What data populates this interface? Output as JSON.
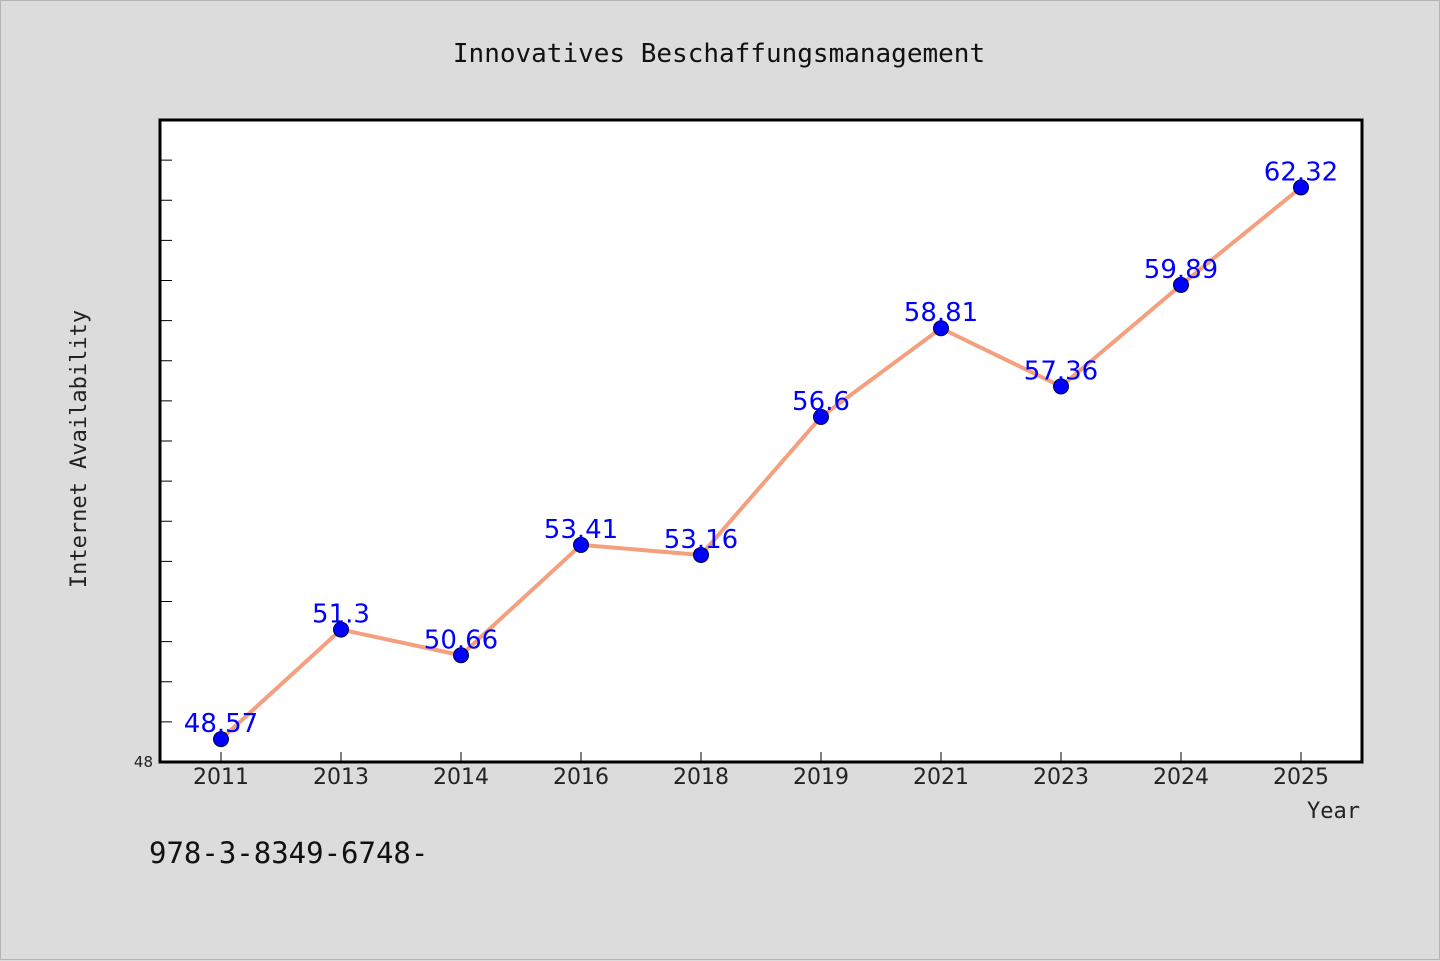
{
  "chart_data": {
    "type": "line",
    "title": "Innovatives Beschaffungsmanagement",
    "xlabel": "Year",
    "ylabel": "Internet Availability",
    "categories": [
      "2011",
      "2013",
      "2014",
      "2016",
      "2018",
      "2019",
      "2021",
      "2023",
      "2024",
      "2025"
    ],
    "series": [
      {
        "values": [
          48.57,
          51.3,
          50.66,
          53.41,
          53.16,
          56.6,
          58.81,
          57.36,
          59.89,
          62.32
        ],
        "labels": [
          "48.57",
          "51.3",
          "50.66",
          "53.41",
          "53.16",
          "56.6",
          "58.81",
          "57.36",
          "59.89",
          "62.32"
        ]
      }
    ],
    "ylim": [
      48,
      64
    ],
    "y_tick_label": "48",
    "grid": false,
    "line_color": "#f4a07f",
    "marker_color": "#0000ff",
    "label_color": "#0000ff"
  },
  "footnote": "978-3-8349-6748-"
}
